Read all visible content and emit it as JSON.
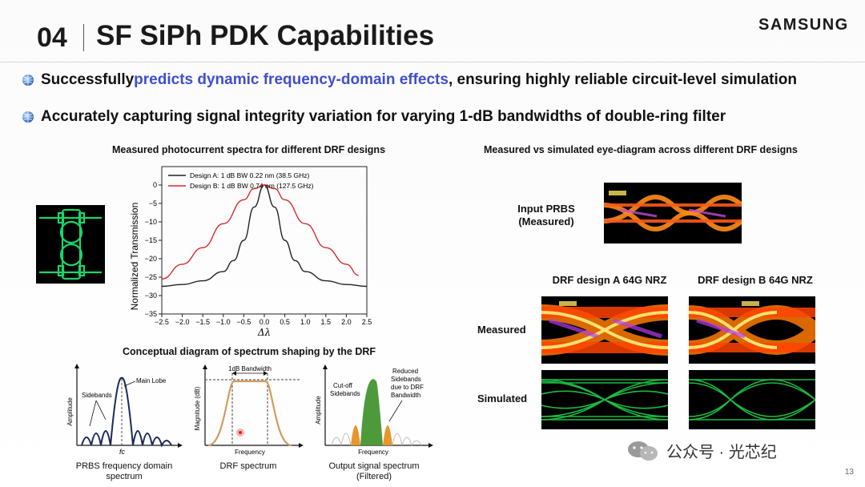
{
  "header": {
    "number": "04",
    "title": "SF SiPh PDK Capabilities",
    "brand": "SAMSUNG"
  },
  "bullets": [
    {
      "pre": "Successfully ",
      "highlight": "predicts dynamic frequency-domain effects",
      "post": ", ensuring highly reliable circuit-level simulation"
    },
    {
      "pre": "Accurately capturing signal integrity variation for varying 1-dB bandwidths of double-ring filter",
      "highlight": "",
      "post": ""
    }
  ],
  "left_panel": {
    "title": "Measured photocurrent spectra for different DRF designs",
    "icon": "double-ring-filter-layout"
  },
  "chart_data": {
    "type": "line",
    "xlabel": "Δλ",
    "ylabel": "Normalized Transmission",
    "xlim": [
      -2.5,
      2.5
    ],
    "ylim": [
      -35,
      5
    ],
    "xticks": [
      "-2.5",
      "-2.0",
      "-1.5",
      "-1.0",
      "-0.5",
      "0.0",
      "0.5",
      "1.0",
      "1.5",
      "2.0",
      "2.5"
    ],
    "yticks": [
      "0",
      "-5",
      "-10",
      "-15",
      "-20",
      "-25",
      "-30",
      "-35"
    ],
    "legend_position": "top",
    "series": [
      {
        "name": "Design A: 1 dB BW 0.22 nm (38.5 GHz)",
        "color": "#222222",
        "x": [
          -2.5,
          -2.0,
          -1.5,
          -1.0,
          -0.75,
          -0.5,
          -0.25,
          0.0,
          0.25,
          0.5,
          0.75,
          1.0,
          1.5,
          2.0,
          2.5
        ],
        "y": [
          -27.5,
          -27.0,
          -26.0,
          -23.5,
          -20.5,
          -15.0,
          -6.0,
          0.0,
          -6.0,
          -15.0,
          -20.5,
          -23.5,
          -26.0,
          -27.0,
          -27.5
        ]
      },
      {
        "name": "Design B: 1 dB BW 0.74 nm (127.5 GHz)",
        "color": "#d9262e",
        "x": [
          -2.5,
          -2.0,
          -1.5,
          -1.0,
          -0.5,
          -0.25,
          0.0,
          0.25,
          0.5,
          1.0,
          1.5,
          2.0,
          2.3
        ],
        "y": [
          -25.5,
          -21.5,
          -17.0,
          -10.5,
          -4.0,
          -1.0,
          0.0,
          -1.0,
          -4.0,
          -10.5,
          -17.0,
          -21.5,
          -24.5
        ]
      }
    ]
  },
  "concept": {
    "title": "Conceptual diagram of spectrum shaping by the DRF",
    "d1": {
      "ylabel": "Amplitude",
      "main_lobe": "Main Lobe",
      "sidebands": "Sidebands",
      "fc": "fc",
      "caption1": "PRBS frequency domain",
      "caption2": "spectrum"
    },
    "d2": {
      "ylabel": "Magnitude (dB)",
      "bandwidth": "1dB Bandwidth",
      "xlabel": "Frequency",
      "caption1": "DRF spectrum"
    },
    "d3": {
      "ylabel": "Amplitude",
      "cutoff1": "Cut-off",
      "cutoff2": "Sidebands",
      "reduced1": "Reduced",
      "reduced2": "Sidebands",
      "reduced3": "due to DRF",
      "reduced4": "Bandwidth",
      "xlabel": "Frequency",
      "caption1": "Output signal spectrum",
      "caption2": "(Filtered)"
    }
  },
  "right_panel": {
    "title": "Measured vs simulated eye-diagram across different DRF designs",
    "input_label_1": "Input PRBS",
    "input_label_2": "(Measured)",
    "col_a": "DRF design A 64G NRZ",
    "col_b": "DRF design B 64G NRZ",
    "row_measured": "Measured",
    "row_simulated": "Simulated"
  },
  "footer": {
    "watermark": "公众号 · 光芯纪",
    "page_number": "13"
  }
}
